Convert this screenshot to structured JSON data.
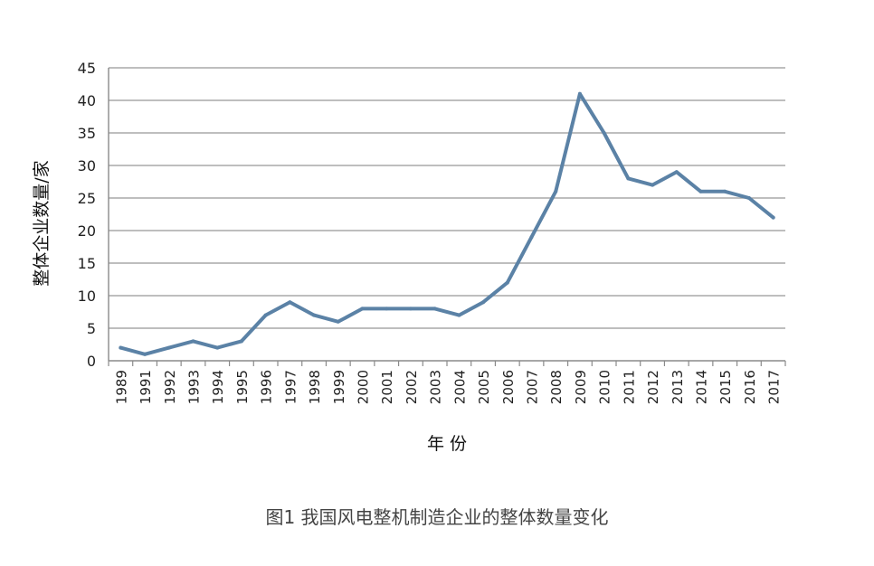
{
  "chart_data": {
    "type": "line",
    "x": [
      "1989",
      "1991",
      "1992",
      "1993",
      "1994",
      "1995",
      "1996",
      "1997",
      "1998",
      "1999",
      "2000",
      "2001",
      "2002",
      "2003",
      "2004",
      "2005",
      "2006",
      "2007",
      "2008",
      "2009",
      "2010",
      "2011",
      "2012",
      "2013",
      "2014",
      "2015",
      "2016",
      "2017"
    ],
    "series": [
      {
        "values": [
          2,
          1,
          2,
          3,
          2,
          3,
          7,
          9,
          7,
          6,
          8,
          8,
          8,
          8,
          7,
          9,
          12,
          19,
          26,
          41,
          35,
          28,
          27,
          29,
          26,
          26,
          25,
          22
        ]
      }
    ],
    "xlabel": "年 份",
    "ylabel": "整体企业数量/家",
    "ylim": [
      0,
      45
    ],
    "yticks": [
      0,
      5,
      10,
      15,
      20,
      25,
      30,
      35,
      40,
      45
    ],
    "grid": true,
    "line_color": "#5b82a6"
  },
  "caption": "图1  我国风电整机制造企业的整体数量变化"
}
